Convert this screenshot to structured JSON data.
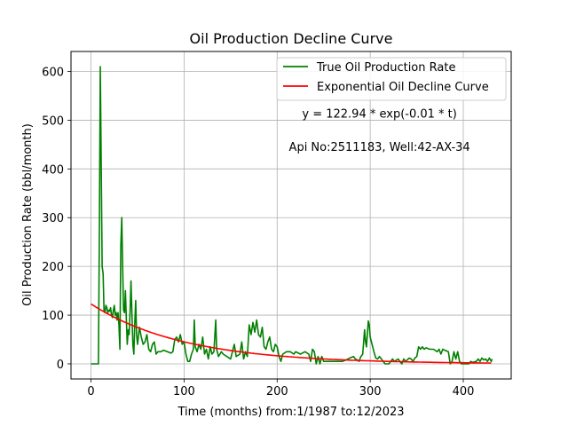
{
  "chart_data": {
    "type": "line",
    "title": "Oil Production Decline Curve",
    "xlabel": "Time (months) from:1/1987 to:12/2023",
    "ylabel": "Oil Production Rate (bbl/month)",
    "xlim": [
      -21.5,
      451.5
    ],
    "ylim": [
      -31,
      641
    ],
    "xticks": [
      0,
      100,
      200,
      300,
      400
    ],
    "yticks": [
      0,
      100,
      200,
      300,
      400,
      500,
      600
    ],
    "grid": true,
    "legend_position": "top-right",
    "annotations": [
      {
        "text": "y = 122.94 * exp(-0.01 * t)",
        "x": 310,
        "y": 505
      },
      {
        "text": "Api No:2511183, Well:42-AX-34",
        "x": 310,
        "y": 437
      }
    ],
    "series": [
      {
        "name": "True Oil Production Rate",
        "color": "#008000",
        "style": "line",
        "points": [
          [
            0,
            0
          ],
          [
            8,
            0
          ],
          [
            9,
            280
          ],
          [
            10,
            610
          ],
          [
            11,
            400
          ],
          [
            12,
            200
          ],
          [
            13,
            185
          ],
          [
            14,
            110
          ],
          [
            15,
            105
          ],
          [
            16,
            120
          ],
          [
            17,
            115
          ],
          [
            18,
            105
          ],
          [
            19,
            110
          ],
          [
            20,
            108
          ],
          [
            21,
            115
          ],
          [
            22,
            100
          ],
          [
            23,
            95
          ],
          [
            24,
            110
          ],
          [
            25,
            120
          ],
          [
            26,
            100
          ],
          [
            27,
            105
          ],
          [
            28,
            90
          ],
          [
            29,
            105
          ],
          [
            30,
            80
          ],
          [
            31,
            30
          ],
          [
            32,
            240
          ],
          [
            33,
            300
          ],
          [
            34,
            200
          ],
          [
            35,
            110
          ],
          [
            36,
            105
          ],
          [
            37,
            150
          ],
          [
            38,
            90
          ],
          [
            39,
            40
          ],
          [
            40,
            70
          ],
          [
            41,
            60
          ],
          [
            42,
            110
          ],
          [
            43,
            170
          ],
          [
            44,
            100
          ],
          [
            45,
            40
          ],
          [
            46,
            20
          ],
          [
            47,
            80
          ],
          [
            48,
            130
          ],
          [
            49,
            60
          ],
          [
            50,
            40
          ],
          [
            52,
            75
          ],
          [
            54,
            55
          ],
          [
            56,
            40
          ],
          [
            58,
            45
          ],
          [
            60,
            60
          ],
          [
            62,
            30
          ],
          [
            64,
            25
          ],
          [
            66,
            40
          ],
          [
            68,
            45
          ],
          [
            70,
            20
          ],
          [
            72,
            25
          ],
          [
            75,
            25
          ],
          [
            78,
            28
          ],
          [
            82,
            25
          ],
          [
            86,
            22
          ],
          [
            88,
            25
          ],
          [
            90,
            50
          ],
          [
            92,
            55
          ],
          [
            94,
            45
          ],
          [
            96,
            60
          ],
          [
            98,
            40
          ],
          [
            100,
            45
          ],
          [
            102,
            20
          ],
          [
            104,
            5
          ],
          [
            106,
            5
          ],
          [
            108,
            20
          ],
          [
            110,
            30
          ],
          [
            111,
            90
          ],
          [
            112,
            35
          ],
          [
            114,
            25
          ],
          [
            116,
            40
          ],
          [
            118,
            30
          ],
          [
            120,
            55
          ],
          [
            122,
            20
          ],
          [
            124,
            30
          ],
          [
            126,
            10
          ],
          [
            128,
            35
          ],
          [
            130,
            20
          ],
          [
            132,
            25
          ],
          [
            134,
            90
          ],
          [
            135,
            30
          ],
          [
            137,
            15
          ],
          [
            140,
            25
          ],
          [
            142,
            20
          ],
          [
            146,
            15
          ],
          [
            150,
            10
          ],
          [
            154,
            40
          ],
          [
            156,
            15
          ],
          [
            160,
            20
          ],
          [
            162,
            45
          ],
          [
            164,
            10
          ],
          [
            166,
            25
          ],
          [
            168,
            15
          ],
          [
            170,
            80
          ],
          [
            172,
            60
          ],
          [
            174,
            85
          ],
          [
            176,
            65
          ],
          [
            178,
            90
          ],
          [
            180,
            60
          ],
          [
            182,
            55
          ],
          [
            184,
            75
          ],
          [
            186,
            35
          ],
          [
            188,
            30
          ],
          [
            190,
            45
          ],
          [
            192,
            55
          ],
          [
            194,
            30
          ],
          [
            196,
            25
          ],
          [
            198,
            40
          ],
          [
            200,
            35
          ],
          [
            202,
            15
          ],
          [
            204,
            5
          ],
          [
            206,
            20
          ],
          [
            210,
            25
          ],
          [
            214,
            25
          ],
          [
            218,
            20
          ],
          [
            220,
            25
          ],
          [
            225,
            20
          ],
          [
            230,
            25
          ],
          [
            234,
            20
          ],
          [
            236,
            5
          ],
          [
            238,
            30
          ],
          [
            240,
            25
          ],
          [
            242,
            0
          ],
          [
            244,
            15
          ],
          [
            246,
            0
          ],
          [
            248,
            15
          ],
          [
            250,
            5
          ],
          [
            254,
            5
          ],
          [
            258,
            5
          ],
          [
            262,
            5
          ],
          [
            266,
            5
          ],
          [
            270,
            5
          ],
          [
            274,
            8
          ],
          [
            278,
            12
          ],
          [
            282,
            15
          ],
          [
            284,
            10
          ],
          [
            286,
            8
          ],
          [
            288,
            5
          ],
          [
            290,
            15
          ],
          [
            292,
            20
          ],
          [
            294,
            70
          ],
          [
            295,
            45
          ],
          [
            296,
            35
          ],
          [
            298,
            88
          ],
          [
            299,
            80
          ],
          [
            300,
            55
          ],
          [
            302,
            40
          ],
          [
            304,
            25
          ],
          [
            306,
            12
          ],
          [
            308,
            10
          ],
          [
            310,
            15
          ],
          [
            312,
            10
          ],
          [
            316,
            0
          ],
          [
            320,
            0
          ],
          [
            324,
            10
          ],
          [
            326,
            5
          ],
          [
            330,
            10
          ],
          [
            334,
            0
          ],
          [
            336,
            10
          ],
          [
            338,
            5
          ],
          [
            342,
            12
          ],
          [
            344,
            10
          ],
          [
            346,
            5
          ],
          [
            348,
            12
          ],
          [
            350,
            15
          ],
          [
            352,
            35
          ],
          [
            354,
            30
          ],
          [
            356,
            35
          ],
          [
            358,
            30
          ],
          [
            360,
            33
          ],
          [
            364,
            30
          ],
          [
            368,
            30
          ],
          [
            372,
            25
          ],
          [
            374,
            30
          ],
          [
            376,
            20
          ],
          [
            378,
            30
          ],
          [
            380,
            28
          ],
          [
            384,
            25
          ],
          [
            386,
            0
          ],
          [
            388,
            5
          ],
          [
            390,
            25
          ],
          [
            392,
            10
          ],
          [
            394,
            25
          ],
          [
            396,
            5
          ],
          [
            398,
            0
          ],
          [
            402,
            0
          ],
          [
            406,
            0
          ],
          [
            408,
            5
          ],
          [
            410,
            3
          ],
          [
            414,
            5
          ],
          [
            416,
            10
          ],
          [
            418,
            5
          ],
          [
            420,
            12
          ],
          [
            422,
            8
          ],
          [
            424,
            10
          ],
          [
            426,
            5
          ],
          [
            428,
            12
          ],
          [
            430,
            5
          ],
          [
            431,
            10
          ]
        ]
      },
      {
        "name": "Exponential Oil Decline Curve",
        "color": "#ff0000",
        "style": "exp",
        "a": 122.94,
        "b": 0.01,
        "xrange": [
          0,
          431
        ]
      }
    ]
  }
}
